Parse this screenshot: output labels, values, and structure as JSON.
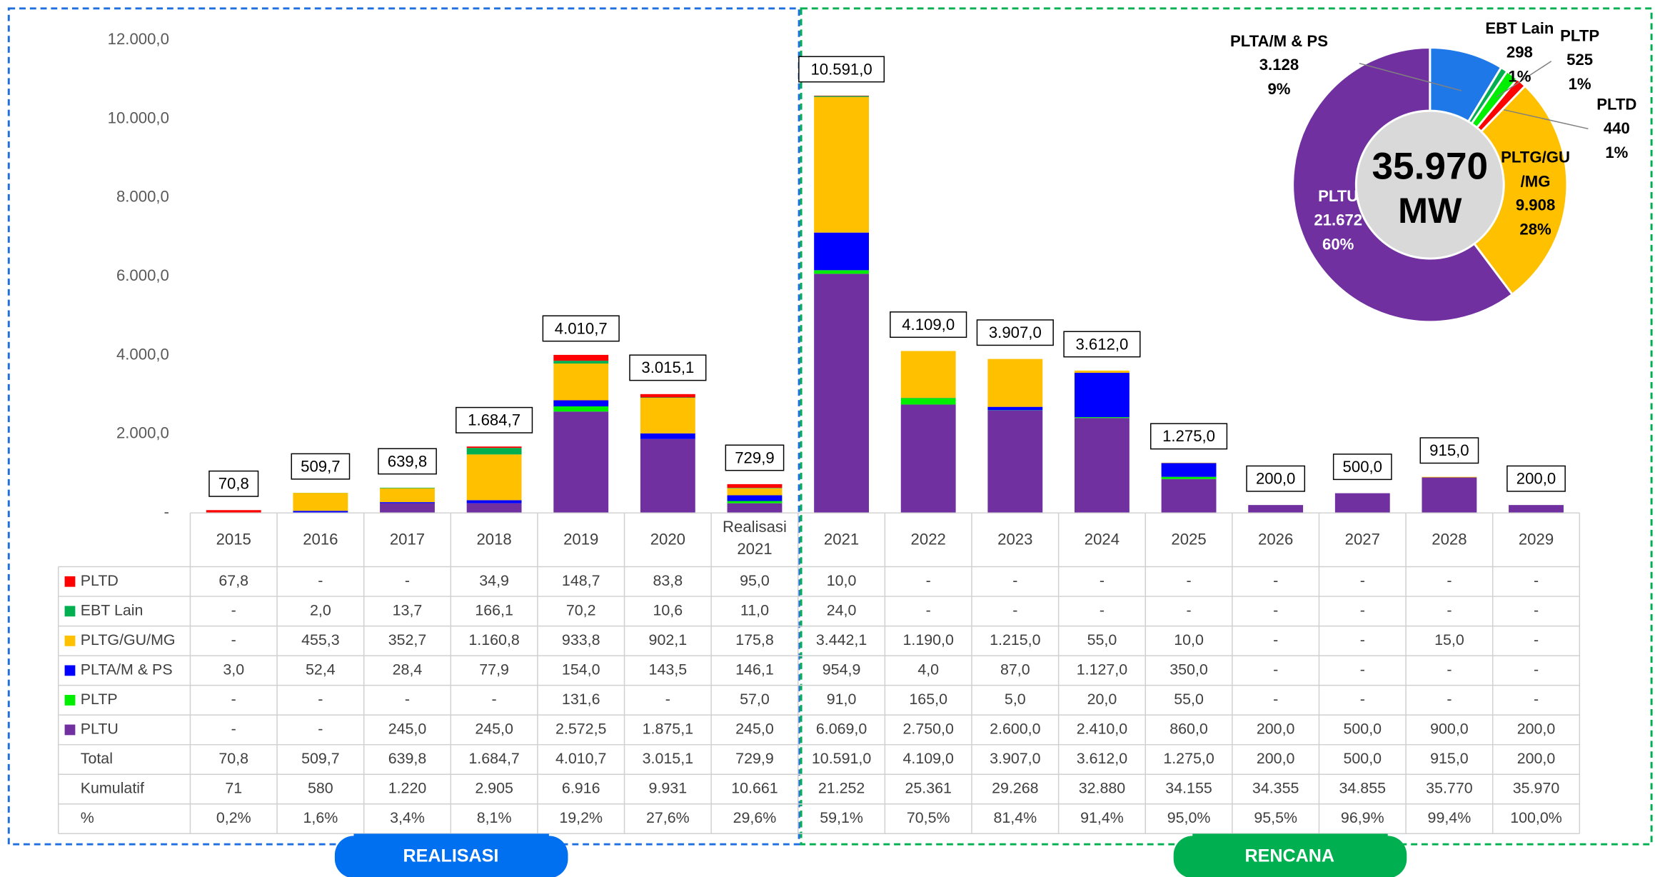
{
  "chart_data": [
    {
      "type": "bar",
      "categories": [
        "2015",
        "2016",
        "2017",
        "2018",
        "2019",
        "2020",
        "Realisasi 2021",
        "2021",
        "2022",
        "2023",
        "2024",
        "2025",
        "2026",
        "2027",
        "2028",
        "2029"
      ],
      "ylim": [
        0,
        12000
      ],
      "yticks": [
        {
          "value": 0,
          "label": "-"
        },
        {
          "value": 2000,
          "label": "2.000,0"
        },
        {
          "value": 4000,
          "label": "4.000,0"
        },
        {
          "value": 6000,
          "label": "6.000,0"
        },
        {
          "value": 8000,
          "label": "8.000,0"
        },
        {
          "value": 10000,
          "label": "10.000,0"
        },
        {
          "value": 12000,
          "label": "12.000,0"
        }
      ],
      "series": [
        {
          "name": "PLTD",
          "color": "#ff0000",
          "values": [
            67.8,
            null,
            null,
            34.9,
            148.7,
            83.8,
            95.0,
            10.0,
            null,
            null,
            null,
            null,
            null,
            null,
            null,
            null
          ],
          "value_labels": [
            "67,8",
            "-",
            "-",
            "34,9",
            "148,7",
            "83,8",
            "95,0",
            "10,0",
            "-",
            "-",
            "-",
            "-",
            "-",
            "-",
            "-",
            "-"
          ]
        },
        {
          "name": "EBT Lain",
          "color": "#00b050",
          "values": [
            null,
            2.0,
            13.7,
            166.1,
            70.2,
            10.6,
            11.0,
            24.0,
            null,
            null,
            null,
            null,
            null,
            null,
            null,
            null
          ],
          "value_labels": [
            "-",
            "2,0",
            "13,7",
            "166,1",
            "70,2",
            "10,6",
            "11,0",
            "24,0",
            "-",
            "-",
            "-",
            "-",
            "-",
            "-",
            "-",
            "-"
          ]
        },
        {
          "name": "PLTG/GU/MG",
          "color": "#ffc000",
          "values": [
            null,
            455.3,
            352.7,
            1160.8,
            933.8,
            902.1,
            175.8,
            3442.1,
            1190.0,
            1215.0,
            55.0,
            10.0,
            null,
            null,
            15.0,
            null
          ],
          "value_labels": [
            "-",
            "455,3",
            "352,7",
            "1.160,8",
            "933,8",
            "902,1",
            "175,8",
            "3.442,1",
            "1.190,0",
            "1.215,0",
            "55,0",
            "10,0",
            "-",
            "-",
            "15,0",
            "-"
          ]
        },
        {
          "name": "PLTA/M & PS",
          "color": "#0000ff",
          "values": [
            3.0,
            52.4,
            28.4,
            77.9,
            154.0,
            143.5,
            146.1,
            954.9,
            4.0,
            87.0,
            1127.0,
            350.0,
            null,
            null,
            null,
            null
          ],
          "value_labels": [
            "3,0",
            "52,4",
            "28,4",
            "77,9",
            "154,0",
            "143,5",
            "146,1",
            "954,9",
            "4,0",
            "87,0",
            "1.127,0",
            "350,0",
            "-",
            "-",
            "-",
            "-"
          ]
        },
        {
          "name": "PLTP",
          "color": "#00ee00",
          "values": [
            null,
            null,
            null,
            null,
            131.6,
            null,
            57.0,
            91.0,
            165.0,
            5.0,
            20.0,
            55.0,
            null,
            null,
            null,
            null
          ],
          "value_labels": [
            "-",
            "-",
            "-",
            "-",
            "131,6",
            "-",
            "57,0",
            "91,0",
            "165,0",
            "5,0",
            "20,0",
            "55,0",
            "-",
            "-",
            "-",
            "-"
          ]
        },
        {
          "name": "PLTU",
          "color": "#7030a0",
          "values": [
            null,
            null,
            245.0,
            245.0,
            2572.5,
            1875.1,
            245.0,
            6069.0,
            2750.0,
            2600.0,
            2410.0,
            860.0,
            200.0,
            500.0,
            900.0,
            200.0
          ],
          "value_labels": [
            "-",
            "-",
            "245,0",
            "245,0",
            "2.572,5",
            "1.875,1",
            "245,0",
            "6.069,0",
            "2.750,0",
            "2.600,0",
            "2.410,0",
            "860,0",
            "200,0",
            "500,0",
            "900,0",
            "200,0"
          ]
        }
      ],
      "rows": [
        {
          "name": "Total",
          "values": [
            70.8,
            509.7,
            639.8,
            1684.7,
            4010.7,
            3015.1,
            729.9,
            10591.0,
            4109.0,
            3907.0,
            3612.0,
            1275.0,
            200.0,
            500.0,
            915.0,
            200.0
          ],
          "value_labels": [
            "70,8",
            "509,7",
            "639,8",
            "1.684,7",
            "4.010,7",
            "3.015,1",
            "729,9",
            "10.591,0",
            "4.109,0",
            "3.907,0",
            "3.612,0",
            "1.275,0",
            "200,0",
            "500,0",
            "915,0",
            "200,0"
          ]
        },
        {
          "name": "Kumulatif",
          "values": [
            71,
            580,
            1220,
            2905,
            6916,
            9931,
            10661,
            21252,
            25361,
            29268,
            32880,
            34155,
            34355,
            34855,
            35770,
            35970
          ],
          "value_labels": [
            "71",
            "580",
            "1.220",
            "2.905",
            "6.916",
            "9.931",
            "10.661",
            "21.252",
            "25.361",
            "29.268",
            "32.880",
            "34.155",
            "34.355",
            "34.855",
            "35.770",
            "35.970"
          ]
        },
        {
          "name": "%",
          "values": [
            0.2,
            1.6,
            3.4,
            8.1,
            19.2,
            27.6,
            29.6,
            59.1,
            70.5,
            81.4,
            91.4,
            95.0,
            95.5,
            96.9,
            99.4,
            100.0
          ],
          "value_labels": [
            "0,2%",
            "1,6%",
            "3,4%",
            "8,1%",
            "19,2%",
            "27,6%",
            "29,6%",
            "59,1%",
            "70,5%",
            "81,4%",
            "91,4%",
            "95,0%",
            "95,5%",
            "96,9%",
            "99,4%",
            "100,0%"
          ]
        }
      ],
      "sections": [
        "REALISASI",
        "RENCANA"
      ]
    },
    {
      "type": "pie",
      "categories": [
        "PLTA/M & PS",
        "EBT Lain",
        "PLTP",
        "PLTD",
        "PLTG/GU/MG",
        "PLTU"
      ],
      "values": [
        3128,
        298,
        525,
        440,
        9908,
        21672
      ],
      "value_labels": [
        "3.128",
        "298",
        "525",
        "440",
        "9.908",
        "21.672"
      ],
      "percents": [
        9,
        1,
        1,
        1,
        28,
        60
      ],
      "percent_labels": [
        "9%",
        "1%",
        "1%",
        "1%",
        "28%",
        "60%"
      ],
      "colors": [
        "#1f78e8",
        "#00b050",
        "#00ee00",
        "#ff0000",
        "#ffc000",
        "#7030a0"
      ],
      "total_label": "35.970",
      "unit": "MW"
    }
  ]
}
